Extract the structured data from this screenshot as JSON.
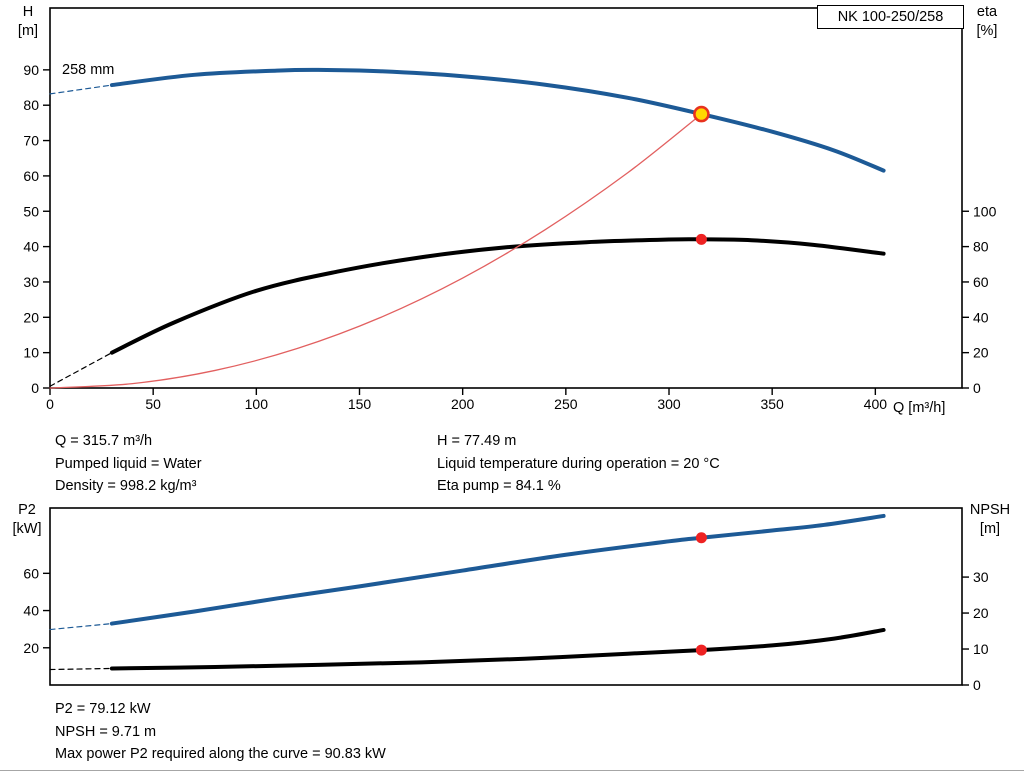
{
  "window": {
    "title_box": "NK 100-250/258"
  },
  "labels": {
    "impeller": "258 mm",
    "top_left_axis": {
      "line1": "H",
      "line2": "[m]"
    },
    "top_right_axis": {
      "line1": "eta",
      "line2": "[%]"
    },
    "bottom_left_axis": {
      "line1": "P2",
      "line2": "[kW]"
    },
    "bottom_right_axis": {
      "line1": "NPSH",
      "line2": "[m]"
    }
  },
  "summary_top": {
    "col1": [
      "Q = 315.7 m³/h",
      "Pumped liquid = Water",
      "Density = 998.2 kg/m³"
    ],
    "col2": [
      "H = 77.49 m",
      "Liquid temperature during operation = 20 °C",
      "Eta pump = 84.1 %"
    ]
  },
  "summary_bottom": [
    "P2 = 79.12 kW",
    "NPSH = 9.71 m",
    "Max power P2 required along the curve = 90.83 kW"
  ],
  "colors": {
    "curve_blue": "#1d5a96",
    "curve_black": "#000000",
    "duty_line_red": "#e26060",
    "marker_red": "#ee2222",
    "marker_yellow": "#ffd800",
    "marker_ring_red": "#e8321e"
  },
  "chart_data": [
    {
      "type": "line",
      "title": "QH and efficiency curves",
      "xlabel": "Q [m³/h]",
      "x_range": [
        0,
        442
      ],
      "x_ticks": [
        0,
        50,
        100,
        150,
        200,
        250,
        300,
        350,
        400
      ],
      "left_axis": {
        "label": "H [m]",
        "ticks": [
          0,
          10,
          20,
          30,
          40,
          50,
          60,
          70,
          80,
          90
        ],
        "range": [
          0,
          107.5
        ]
      },
      "right_axis": {
        "label": "eta [%]",
        "ticks": [
          0,
          20,
          40,
          60,
          80,
          100
        ],
        "range": [
          0,
          215
        ]
      },
      "series": [
        {
          "name": "pump-curve-dashed",
          "axis": "left",
          "color": "#1d5a96",
          "width": 1.2,
          "dash": "5,4",
          "points": [
            [
              0,
              83.2
            ],
            [
              30,
              85.7
            ]
          ]
        },
        {
          "name": "eta-curve-dashed",
          "axis": "right",
          "color": "#000000",
          "width": 1.2,
          "dash": "5,4",
          "points": [
            [
              0,
              1
            ],
            [
              30,
              20
            ]
          ]
        },
        {
          "name": "pump-curve",
          "axis": "left",
          "color": "#1d5a96",
          "width": 4,
          "dash": null,
          "points": [
            [
              30,
              85.7
            ],
            [
              70,
              88.6
            ],
            [
              110,
              89.8
            ],
            [
              130,
              90
            ],
            [
              160,
              89.6
            ],
            [
              200,
              88.2
            ],
            [
              240,
              85.8
            ],
            [
              280,
              82.1
            ],
            [
              315.7,
              77.49
            ],
            [
              350,
              72.5
            ],
            [
              380,
              67.2
            ],
            [
              404,
              61.5
            ]
          ]
        },
        {
          "name": "eta-curve",
          "axis": "right",
          "color": "#000000",
          "width": 4,
          "dash": null,
          "points": [
            [
              30,
              20
            ],
            [
              60,
              37
            ],
            [
              100,
              55
            ],
            [
              140,
              66
            ],
            [
              180,
              74
            ],
            [
              220,
              79.5
            ],
            [
              260,
              82.5
            ],
            [
              300,
              84
            ],
            [
              315.7,
              84.1
            ],
            [
              340,
              83.6
            ],
            [
              370,
              81
            ],
            [
              404,
              76
            ]
          ]
        },
        {
          "name": "duty-parabola",
          "axis": "left",
          "color": "#e26060",
          "width": 1.3,
          "dash": null,
          "points": [
            [
              0,
              0
            ],
            [
              40,
              1.24
            ],
            [
              80,
              4.97
            ],
            [
              120,
              11.2
            ],
            [
              160,
              19.9
            ],
            [
              200,
              31.1
            ],
            [
              240,
              44.8
            ],
            [
              280,
              60.9
            ],
            [
              315.7,
              77.49
            ]
          ]
        }
      ],
      "markers": [
        {
          "name": "duty-point",
          "axis": "left",
          "x": 315.7,
          "y": 77.49,
          "r": 7,
          "fill": "#ffd800",
          "stroke": "#e8321e",
          "stroke_width": 2.6
        },
        {
          "name": "eta-point",
          "axis": "right",
          "x": 315.7,
          "y": 84.1,
          "r": 5.5,
          "fill": "#ee2222",
          "stroke": "none",
          "stroke_width": 0
        }
      ]
    },
    {
      "type": "line",
      "title": "P2 and NPSH curves",
      "xlabel": "",
      "x_range": [
        0,
        442
      ],
      "x_ticks": [],
      "left_axis": {
        "label": "P2 [kW]",
        "ticks": [
          20,
          40,
          60
        ],
        "range": [
          0,
          95.1
        ]
      },
      "right_axis": {
        "label": "NPSH [m]",
        "ticks": [
          0,
          10,
          20,
          30
        ],
        "range": [
          0,
          49.2
        ]
      },
      "series": [
        {
          "name": "p2-curve-dashed",
          "axis": "left",
          "color": "#1d5a96",
          "width": 1.2,
          "dash": "5,4",
          "points": [
            [
              0,
              29.8
            ],
            [
              30,
              33
            ]
          ]
        },
        {
          "name": "npsh-curve-dashed",
          "axis": "right",
          "color": "#000000",
          "width": 1.2,
          "dash": "5,4",
          "points": [
            [
              0,
              4.3
            ],
            [
              30,
              4.6
            ]
          ]
        },
        {
          "name": "p2-curve",
          "axis": "left",
          "color": "#1d5a96",
          "width": 4,
          "dash": null,
          "points": [
            [
              30,
              33
            ],
            [
              70,
              39.5
            ],
            [
              110,
              46.5
            ],
            [
              150,
              53
            ],
            [
              200,
              61.5
            ],
            [
              250,
              70
            ],
            [
              300,
              77.2
            ],
            [
              315.7,
              79.12
            ],
            [
              350,
              83
            ],
            [
              375,
              86
            ],
            [
              404,
              90.83
            ]
          ]
        },
        {
          "name": "npsh-curve",
          "axis": "right",
          "color": "#000000",
          "width": 4,
          "dash": null,
          "points": [
            [
              30,
              4.6
            ],
            [
              80,
              5.0
            ],
            [
              130,
              5.6
            ],
            [
              180,
              6.3
            ],
            [
              230,
              7.3
            ],
            [
              280,
              8.7
            ],
            [
              315.7,
              9.71
            ],
            [
              350,
              11
            ],
            [
              380,
              12.9
            ],
            [
              404,
              15.3
            ]
          ]
        }
      ],
      "markers": [
        {
          "name": "p2-point",
          "axis": "left",
          "x": 315.7,
          "y": 79.12,
          "r": 5.5,
          "fill": "#ee2222",
          "stroke": "none",
          "stroke_width": 0
        },
        {
          "name": "npsh-point",
          "axis": "right",
          "x": 315.7,
          "y": 9.71,
          "r": 5.5,
          "fill": "#ee2222",
          "stroke": "none",
          "stroke_width": 0
        }
      ]
    }
  ]
}
